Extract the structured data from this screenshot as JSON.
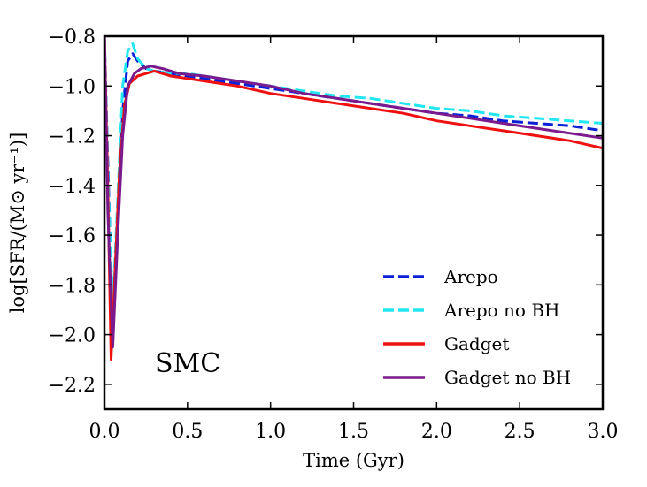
{
  "chart_data": {
    "type": "line",
    "xlabel": "Time (Gyr)",
    "ylabel": "log[SFR/(M⊙ yr⁻¹)]",
    "xlim": [
      0.0,
      3.0
    ],
    "ylim": [
      -2.3,
      -0.8
    ],
    "xticks": [
      "0.0",
      "0.5",
      "1.0",
      "1.5",
      "2.0",
      "2.5",
      "3.0"
    ],
    "yticks": [
      "−0.8",
      "−1.0",
      "−1.2",
      "−1.4",
      "−1.6",
      "−1.8",
      "−2.0",
      "−2.2"
    ],
    "ytick_values": [
      -0.8,
      -1.0,
      -1.2,
      -1.4,
      -1.6,
      -1.8,
      -2.0,
      -2.2
    ],
    "xtick_values": [
      0.0,
      0.5,
      1.0,
      1.5,
      2.0,
      2.5,
      3.0
    ],
    "annotation": "SMC",
    "grid": false,
    "legend_position": "lower-right",
    "series": [
      {
        "name": "Arepo",
        "color": "#0a1fd6",
        "dash": "dashed",
        "x": [
          0.0,
          0.02,
          0.05,
          0.08,
          0.11,
          0.14,
          0.17,
          0.2,
          0.25,
          0.3,
          0.4,
          0.5,
          0.6,
          0.8,
          1.0,
          1.2,
          1.4,
          1.6,
          1.8,
          2.0,
          2.2,
          2.4,
          2.6,
          2.8,
          3.0
        ],
        "y": [
          -0.8,
          -1.3,
          -1.95,
          -1.55,
          -1.1,
          -0.9,
          -0.87,
          -0.9,
          -0.93,
          -0.94,
          -0.95,
          -0.96,
          -0.97,
          -0.99,
          -1.01,
          -1.03,
          -1.05,
          -1.07,
          -1.09,
          -1.11,
          -1.12,
          -1.14,
          -1.15,
          -1.16,
          -1.18
        ]
      },
      {
        "name": "Arepo no BH",
        "color": "#22e6f2",
        "dash": "dashed",
        "x": [
          0.0,
          0.02,
          0.05,
          0.08,
          0.11,
          0.14,
          0.17,
          0.2,
          0.25,
          0.3,
          0.4,
          0.5,
          0.6,
          0.8,
          1.0,
          1.2,
          1.4,
          1.6,
          1.8,
          2.0,
          2.2,
          2.4,
          2.6,
          2.8,
          3.0
        ],
        "y": [
          -0.8,
          -1.35,
          -1.9,
          -1.45,
          -1.0,
          -0.86,
          -0.83,
          -0.89,
          -0.93,
          -0.94,
          -0.95,
          -0.95,
          -0.96,
          -0.98,
          -1.0,
          -1.02,
          -1.04,
          -1.05,
          -1.07,
          -1.09,
          -1.1,
          -1.12,
          -1.13,
          -1.14,
          -1.15
        ]
      },
      {
        "name": "Gadget",
        "color": "#ee1111",
        "dash": "solid",
        "x": [
          0.0,
          0.02,
          0.04,
          0.06,
          0.09,
          0.12,
          0.15,
          0.2,
          0.25,
          0.3,
          0.4,
          0.5,
          0.6,
          0.8,
          1.0,
          1.2,
          1.4,
          1.6,
          1.8,
          2.0,
          2.2,
          2.4,
          2.6,
          2.8,
          3.0
        ],
        "y": [
          -0.8,
          -1.4,
          -2.1,
          -1.8,
          -1.35,
          -1.08,
          -0.99,
          -0.96,
          -0.95,
          -0.94,
          -0.96,
          -0.97,
          -0.98,
          -1.0,
          -1.03,
          -1.05,
          -1.07,
          -1.09,
          -1.11,
          -1.14,
          -1.16,
          -1.18,
          -1.2,
          -1.22,
          -1.25
        ]
      },
      {
        "name": "Gadget no BH",
        "color": "#7a1a8c",
        "dash": "solid",
        "x": [
          0.0,
          0.02,
          0.05,
          0.08,
          0.11,
          0.14,
          0.18,
          0.22,
          0.28,
          0.35,
          0.45,
          0.6,
          0.8,
          1.0,
          1.2,
          1.4,
          1.6,
          1.8,
          2.0,
          2.2,
          2.4,
          2.6,
          2.8,
          3.0
        ],
        "y": [
          -0.8,
          -1.5,
          -2.05,
          -1.6,
          -1.2,
          -1.0,
          -0.95,
          -0.93,
          -0.92,
          -0.93,
          -0.95,
          -0.96,
          -0.98,
          -1.0,
          -1.03,
          -1.05,
          -1.07,
          -1.09,
          -1.11,
          -1.13,
          -1.15,
          -1.17,
          -1.19,
          -1.21
        ]
      }
    ]
  }
}
